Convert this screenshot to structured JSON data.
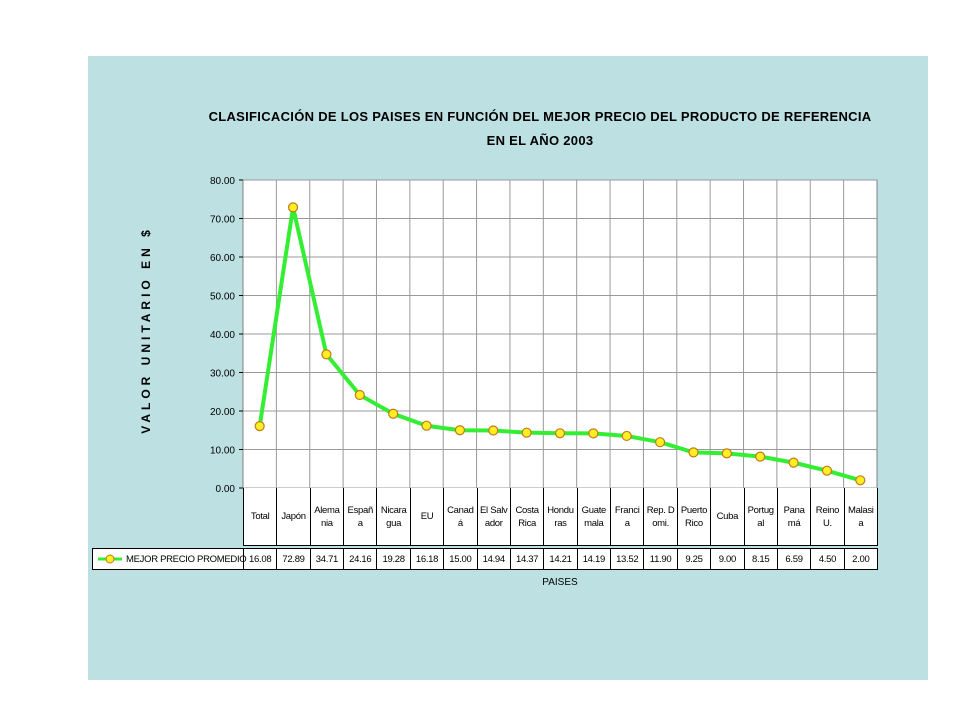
{
  "chart_data": {
    "type": "line",
    "title": "CLASIFICACIÓN DE LOS PAISES EN FUNCIÓN DEL MEJOR PRECIO DEL PRODUCTO DE REFERENCIA",
    "subtitle": "EN EL AÑO 2003",
    "ylabel": "VALOR UNITARIO EN $",
    "xlabel": "PAISES",
    "ylim": [
      0,
      80
    ],
    "yticks": [
      "0.00",
      "10.00",
      "20.00",
      "30.00",
      "40.00",
      "50.00",
      "60.00",
      "70.00",
      "80.00"
    ],
    "grid": true,
    "legend": "in data table, left",
    "categories": [
      "Total",
      "Japón",
      "Alemania",
      "España",
      "Nicaragua",
      "EU",
      "Canadá",
      "El Salvador",
      "Costa Rica",
      "Honduras",
      "Guatemala",
      "Francia",
      "Rep. Domi.",
      "Puerto Rico",
      "Cuba",
      "Portugal",
      "Panamá",
      "Reino U.",
      "Malasia"
    ],
    "series": [
      {
        "name": "MEJOR PRECIO PROMEDIO",
        "values": [
          16.08,
          72.89,
          34.71,
          24.16,
          19.28,
          16.18,
          15.0,
          14.94,
          14.37,
          14.21,
          14.19,
          13.52,
          11.9,
          9.25,
          9.0,
          8.15,
          6.59,
          4.5,
          2.0
        ],
        "labels": [
          "16.08",
          "72.89",
          "34.71",
          "24.16",
          "19.28",
          "16.18",
          "15.00",
          "14.94",
          "14.37",
          "14.21",
          "14.19",
          "13.52",
          "11.90",
          "9.25",
          "9.00",
          "8.15",
          "6.59",
          "4.50",
          "2.00"
        ],
        "line_color": "#33ee33",
        "marker_color": "#ffee22",
        "marker_edge": "#c07a1a"
      }
    ]
  },
  "colors": {
    "panel": "#bde0e3",
    "plot_bg": "#ffffff",
    "grid": "#999999"
  }
}
